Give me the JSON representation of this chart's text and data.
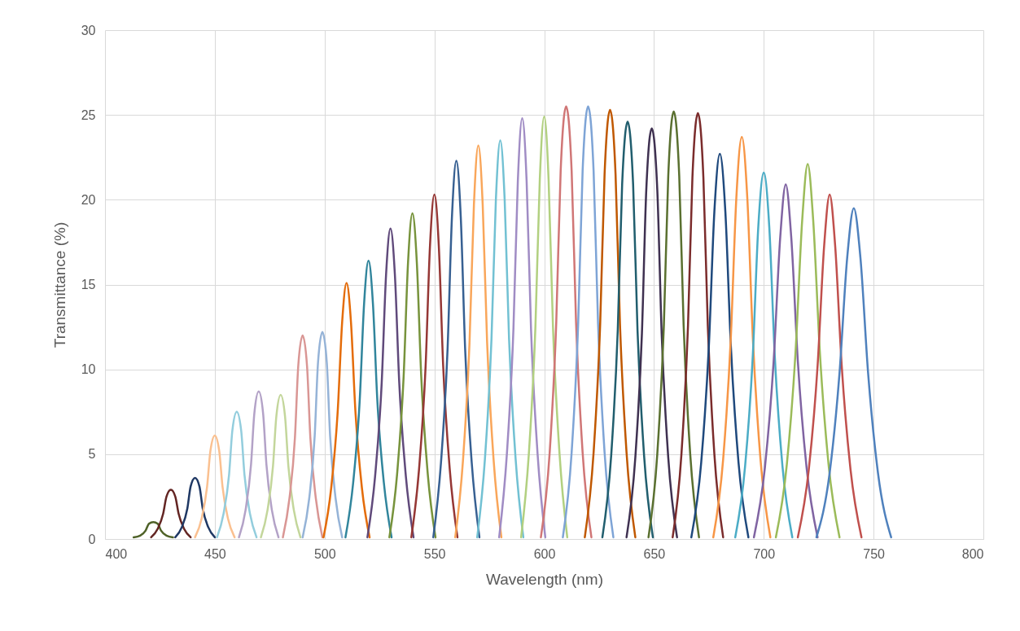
{
  "chart_data": {
    "type": "line",
    "xlabel": "Wavelength (nm)",
    "ylabel": "Transmittance (%)",
    "xlim": [
      400,
      800
    ],
    "xticks": [
      400,
      450,
      500,
      550,
      600,
      650,
      700,
      750,
      800
    ],
    "ylim": [
      0,
      30
    ],
    "yticks": [
      0,
      5,
      10,
      15,
      20,
      25,
      30
    ],
    "grid": true,
    "legend": false,
    "marker": "none",
    "line_style": "solid",
    "series": [
      {
        "color": "#4f6228",
        "x": [
          413,
          416,
          418.5,
          420,
          422,
          424,
          425.5,
          428,
          431
        ],
        "values": [
          0.1,
          0.2,
          0.5,
          0.9,
          1.0,
          0.9,
          0.5,
          0.2,
          0.1
        ]
      },
      {
        "color": "#632523",
        "x": [
          421,
          424,
          426.5,
          428,
          430,
          432,
          433.5,
          436,
          439
        ],
        "values": [
          0.1,
          0.6,
          1.5,
          2.5,
          2.9,
          2.5,
          1.5,
          0.6,
          0.1
        ]
      },
      {
        "color": "#1f3864",
        "x": [
          432,
          435,
          437.5,
          439,
          441,
          443,
          444.5,
          447,
          450
        ],
        "values": [
          0.1,
          0.7,
          1.8,
          3.1,
          3.6,
          3.1,
          1.8,
          0.7,
          0.1
        ]
      },
      {
        "color": "#fac090",
        "x": [
          441,
          444,
          446.5,
          448,
          450,
          452,
          453.5,
          456,
          459
        ],
        "values": [
          0.1,
          1.2,
          3.1,
          5.2,
          6.1,
          5.2,
          3.1,
          1.2,
          0.1
        ]
      },
      {
        "color": "#93cddd",
        "x": [
          451,
          454,
          456.5,
          458,
          460,
          462,
          463.5,
          466,
          469
        ],
        "values": [
          0.1,
          1.5,
          3.8,
          6.4,
          7.5,
          6.4,
          3.8,
          1.5,
          0.1
        ]
      },
      {
        "color": "#b3a2c7",
        "x": [
          461,
          464,
          466.5,
          468,
          470,
          472,
          473.5,
          476,
          479
        ],
        "values": [
          0.1,
          1.7,
          4.4,
          7.4,
          8.7,
          7.4,
          4.4,
          1.7,
          0.1
        ]
      },
      {
        "color": "#c3d69b",
        "x": [
          471,
          474,
          476.5,
          478,
          480,
          482,
          483.5,
          486,
          489
        ],
        "values": [
          0.1,
          1.7,
          4.3,
          7.2,
          8.5,
          7.2,
          4.3,
          1.7,
          0.1
        ]
      },
      {
        "color": "#d99694",
        "x": [
          481,
          484,
          486.5,
          488,
          490,
          492,
          493.5,
          496,
          499
        ],
        "values": [
          0.1,
          2.4,
          6.0,
          10.2,
          12.0,
          10.2,
          6.0,
          2.4,
          0.1
        ]
      },
      {
        "color": "#95b3d7",
        "x": [
          490,
          493,
          495.5,
          497,
          499,
          501,
          502.5,
          505,
          508
        ],
        "values": [
          0.1,
          2.4,
          6.1,
          10.4,
          12.2,
          10.4,
          6.1,
          2.4,
          0.1
        ]
      },
      {
        "color": "#e46c0a",
        "x": [
          499.5,
          503,
          506,
          508,
          510,
          512,
          514,
          517,
          520.5
        ],
        "values": [
          0.1,
          3.0,
          7.6,
          12.8,
          15.1,
          12.8,
          7.6,
          3.0,
          0.1
        ]
      },
      {
        "color": "#31859c",
        "x": [
          509.5,
          513,
          516,
          518,
          520,
          522,
          524,
          527,
          530.5
        ],
        "values": [
          0.1,
          3.3,
          8.2,
          13.9,
          16.4,
          13.9,
          8.2,
          3.3,
          0.1
        ]
      },
      {
        "color": "#604a7b",
        "x": [
          519.5,
          523,
          526,
          528,
          530,
          532,
          534,
          537,
          540.5
        ],
        "values": [
          0.1,
          3.7,
          9.2,
          15.6,
          18.3,
          15.6,
          9.2,
          3.7,
          0.1
        ]
      },
      {
        "color": "#77933c",
        "x": [
          529.5,
          533,
          536,
          538,
          540,
          542,
          544,
          547,
          550.5
        ],
        "values": [
          0.1,
          3.8,
          9.6,
          16.3,
          19.2,
          16.3,
          9.6,
          3.8,
          0.1
        ]
      },
      {
        "color": "#953735",
        "x": [
          539.5,
          543,
          546,
          548,
          550,
          552,
          554,
          557,
          560.5
        ],
        "values": [
          0.1,
          4.1,
          10.2,
          17.3,
          20.3,
          17.3,
          10.2,
          4.1,
          0.1
        ]
      },
      {
        "color": "#376092",
        "x": [
          549.5,
          553,
          556,
          558,
          560,
          562,
          564,
          567,
          570.5
        ],
        "values": [
          0.1,
          4.5,
          11.2,
          19.0,
          22.3,
          19.0,
          11.2,
          4.5,
          0.1
        ]
      },
      {
        "color": "#f9a65a",
        "x": [
          559.5,
          563,
          566,
          568,
          570,
          572,
          574,
          577,
          580.5
        ],
        "values": [
          0.1,
          4.6,
          11.6,
          19.7,
          23.2,
          19.7,
          11.6,
          4.6,
          0.1
        ]
      },
      {
        "color": "#72c1d3",
        "x": [
          569.5,
          573,
          576,
          578,
          580,
          582,
          584,
          587,
          590.5
        ],
        "values": [
          0.1,
          4.7,
          11.8,
          20.0,
          23.5,
          20.0,
          11.8,
          4.7,
          0.1
        ]
      },
      {
        "color": "#a08cc4",
        "x": [
          579.5,
          583,
          586,
          588,
          590,
          592,
          594,
          597,
          600.5
        ],
        "values": [
          0.1,
          5.0,
          12.4,
          21.1,
          24.8,
          21.1,
          12.4,
          5.0,
          0.1
        ]
      },
      {
        "color": "#b2d080",
        "x": [
          589.5,
          593,
          596,
          598,
          600,
          602,
          604,
          607,
          610.5
        ],
        "values": [
          0.1,
          5.0,
          12.5,
          21.2,
          24.9,
          21.2,
          12.5,
          5.0,
          0.1
        ]
      },
      {
        "color": "#d07676",
        "x": [
          598.5,
          602.5,
          605.5,
          607.5,
          610,
          612.5,
          614.5,
          617.5,
          621.5
        ],
        "values": [
          0.1,
          5.1,
          12.8,
          21.7,
          25.5,
          21.7,
          12.8,
          5.1,
          0.1
        ]
      },
      {
        "color": "#7ea4d6",
        "x": [
          608.5,
          612.5,
          615.5,
          617.5,
          620,
          622.5,
          624.5,
          627.5,
          631.5
        ],
        "values": [
          0.1,
          5.1,
          12.8,
          21.7,
          25.5,
          21.7,
          12.8,
          5.1,
          0.1
        ]
      },
      {
        "color": "#c05800",
        "x": [
          618.5,
          622.5,
          625.5,
          627.5,
          630,
          632.5,
          634.5,
          637.5,
          641.5
        ],
        "values": [
          0.1,
          5.1,
          12.7,
          21.5,
          25.3,
          21.5,
          12.7,
          5.1,
          0.1
        ]
      },
      {
        "color": "#215e6e",
        "x": [
          626.5,
          630.5,
          633.5,
          635.5,
          638,
          640.5,
          642.5,
          645.5,
          649.5
        ],
        "values": [
          0.1,
          4.9,
          12.3,
          20.9,
          24.6,
          20.9,
          12.3,
          4.9,
          0.1
        ]
      },
      {
        "color": "#3f3151",
        "x": [
          637.5,
          641.5,
          644.5,
          646.5,
          649,
          651.5,
          653.5,
          656.5,
          660.5
        ],
        "values": [
          0.1,
          4.8,
          12.1,
          20.6,
          24.2,
          20.6,
          12.1,
          4.8,
          0.1
        ]
      },
      {
        "color": "#5a7030",
        "x": [
          647.5,
          651.5,
          654.5,
          656.5,
          659,
          661.5,
          663.5,
          666.5,
          670.5
        ],
        "values": [
          0.1,
          5.0,
          12.6,
          21.4,
          25.2,
          21.4,
          12.6,
          5.0,
          0.1
        ]
      },
      {
        "color": "#7b2c2c",
        "x": [
          658.5,
          662.5,
          665.5,
          667.5,
          670,
          672.5,
          674.5,
          677.5,
          681.5
        ],
        "values": [
          0.1,
          5.0,
          12.6,
          21.3,
          25.1,
          21.3,
          12.6,
          5.0,
          0.1
        ]
      },
      {
        "color": "#1f497d",
        "x": [
          667,
          671.5,
          675,
          677.5,
          680,
          682.5,
          685,
          688.5,
          693
        ],
        "values": [
          0.1,
          4.5,
          11.4,
          19.3,
          22.7,
          19.3,
          11.4,
          4.5,
          0.1
        ]
      },
      {
        "color": "#f79646",
        "x": [
          677,
          681.5,
          685,
          687.5,
          690,
          692.5,
          695,
          698.5,
          703
        ],
        "values": [
          0.1,
          4.7,
          11.9,
          20.1,
          23.7,
          20.1,
          11.9,
          4.7,
          0.1
        ]
      },
      {
        "color": "#4bacc6",
        "x": [
          687,
          691.5,
          695,
          697.5,
          700,
          702.5,
          705,
          708.5,
          713
        ],
        "values": [
          0.1,
          4.3,
          10.8,
          18.4,
          21.6,
          18.4,
          10.8,
          4.3,
          0.1
        ]
      },
      {
        "color": "#8064a2",
        "x": [
          695.5,
          700.5,
          704.5,
          707.5,
          710,
          712.5,
          715.5,
          719.5,
          724.5
        ],
        "values": [
          0.1,
          4.2,
          10.5,
          17.8,
          20.9,
          17.8,
          10.5,
          4.2,
          0.1
        ]
      },
      {
        "color": "#9bbb59",
        "x": [
          705.5,
          710.5,
          714.5,
          717.5,
          720,
          722.5,
          725.5,
          729.5,
          734.5
        ],
        "values": [
          0.1,
          4.4,
          11.1,
          18.8,
          22.1,
          18.8,
          11.1,
          4.4,
          0.1
        ]
      },
      {
        "color": "#c0504d",
        "x": [
          715.5,
          720.5,
          724.5,
          727.5,
          730,
          732.5,
          735.5,
          739.5,
          744.5
        ],
        "values": [
          0.1,
          4.1,
          10.2,
          17.3,
          20.3,
          17.3,
          10.2,
          4.1,
          0.1
        ]
      },
      {
        "color": "#4f81bd",
        "x": [
          724,
          730,
          734.5,
          738,
          741,
          744,
          747.5,
          752,
          758
        ],
        "values": [
          0.1,
          3.9,
          9.8,
          16.6,
          19.5,
          16.6,
          9.8,
          3.9,
          0.1
        ]
      }
    ]
  }
}
